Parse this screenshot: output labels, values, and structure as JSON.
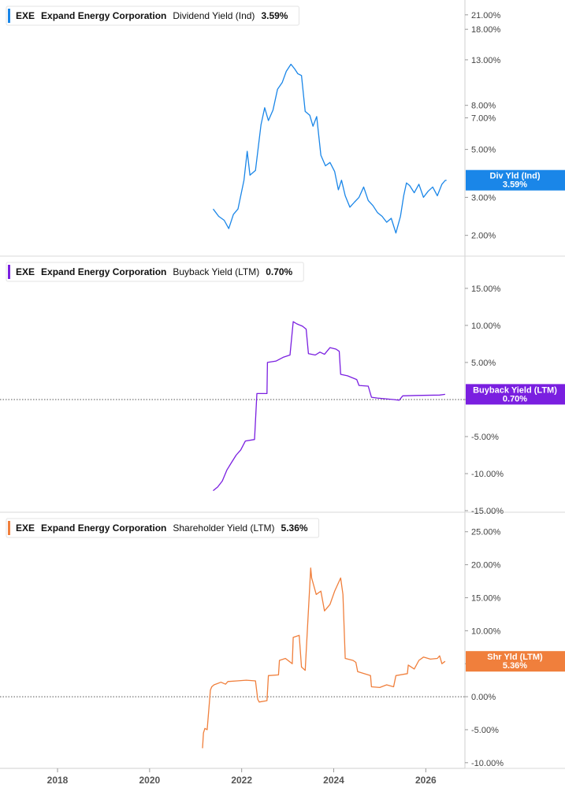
{
  "chart_data": [
    {
      "type": "line",
      "ticker": "EXE",
      "company": "Expand Energy Corporation",
      "metric": "Dividend Yield (Ind)",
      "latest_value": "3.59%",
      "tag_label": "Div Yld (Ind)",
      "tag_value": "3.59%",
      "color": "#1a86e8",
      "scale": "log",
      "ylim": [
        1.7,
        23
      ],
      "y_ticks": [
        2,
        3,
        5,
        7,
        8,
        13,
        18,
        21
      ],
      "y_tick_labels": [
        "2.00%",
        "3.00%",
        "5.00%",
        "7.00%",
        "8.00%",
        "13.00%",
        "18.00%",
        "21.00%"
      ],
      "zero_line": false,
      "x": [
        2021.38,
        2021.5,
        2021.62,
        2021.72,
        2021.82,
        2021.92,
        2022.05,
        2022.12,
        2022.18,
        2022.3,
        2022.42,
        2022.5,
        2022.58,
        2022.68,
        2022.78,
        2022.88,
        2022.97,
        2023.07,
        2023.15,
        2023.22,
        2023.3,
        2023.38,
        2023.48,
        2023.55,
        2023.63,
        2023.72,
        2023.82,
        2023.92,
        2024.02,
        2024.1,
        2024.17,
        2024.25,
        2024.35,
        2024.45,
        2024.55,
        2024.65,
        2024.75,
        2024.85,
        2024.95,
        2025.05,
        2025.15,
        2025.25,
        2025.35,
        2025.45,
        2025.52,
        2025.58,
        2025.65,
        2025.75,
        2025.85,
        2025.95,
        2026.05,
        2026.15,
        2026.25,
        2026.35,
        2026.42,
        2026.45
      ],
      "y": [
        2.65,
        2.45,
        2.35,
        2.15,
        2.5,
        2.65,
        3.6,
        4.9,
        3.8,
        4.0,
        6.5,
        7.8,
        6.8,
        7.6,
        9.5,
        10.2,
        11.5,
        12.4,
        11.8,
        11.2,
        11.0,
        7.5,
        7.2,
        6.4,
        7.1,
        4.7,
        4.2,
        4.35,
        3.95,
        3.25,
        3.6,
        3.05,
        2.7,
        2.85,
        3.0,
        3.35,
        2.9,
        2.75,
        2.55,
        2.45,
        2.3,
        2.4,
        2.05,
        2.45,
        3.05,
        3.5,
        3.4,
        3.15,
        3.45,
        3.0,
        3.2,
        3.35,
        3.05,
        3.45,
        3.59,
        3.6
      ]
    },
    {
      "type": "line",
      "ticker": "EXE",
      "company": "Expand Energy Corporation",
      "metric": "Buyback Yield (LTM)",
      "latest_value": "0.70%",
      "tag_label": "Buyback Yield (LTM)",
      "tag_value": "0.70%",
      "color": "#7a1fe0",
      "scale": "linear",
      "ylim": [
        -15,
        18.5
      ],
      "y_ticks": [
        -15,
        -10,
        -5,
        0,
        5,
        10,
        15
      ],
      "y_tick_labels": [
        "-15.00%",
        "-10.00%",
        "-5.00%",
        "0.00%",
        "5.00%",
        "10.00%",
        "15.00%"
      ],
      "zero_line": true,
      "x": [
        2021.38,
        2021.48,
        2021.58,
        2021.68,
        2021.78,
        2021.88,
        2021.98,
        2022.08,
        2022.28,
        2022.33,
        2022.55,
        2022.56,
        2022.75,
        2022.9,
        2023.05,
        2023.12,
        2023.2,
        2023.32,
        2023.4,
        2023.45,
        2023.6,
        2023.7,
        2023.8,
        2023.92,
        2024.05,
        2024.12,
        2024.15,
        2024.3,
        2024.5,
        2024.55,
        2024.75,
        2024.82,
        2024.95,
        2025.3,
        2025.42,
        2025.5,
        2025.8,
        2026.3,
        2026.42
      ],
      "y": [
        -12.3,
        -11.8,
        -11.0,
        -9.5,
        -8.5,
        -7.5,
        -6.8,
        -5.6,
        -5.4,
        0.8,
        0.8,
        5.0,
        5.2,
        5.7,
        6.0,
        10.5,
        10.2,
        9.9,
        9.5,
        6.2,
        6.0,
        6.4,
        6.1,
        7.0,
        6.8,
        6.5,
        3.4,
        3.2,
        2.7,
        1.9,
        1.8,
        0.3,
        0.2,
        0.0,
        -0.1,
        0.5,
        0.55,
        0.6,
        0.7
      ]
    },
    {
      "type": "line",
      "ticker": "EXE",
      "company": "Expand Energy Corporation",
      "metric": "Shareholder Yield (LTM)",
      "latest_value": "5.36%",
      "tag_label": "Shr Yld (LTM)",
      "tag_value": "5.36%",
      "color": "#f07f3c",
      "scale": "linear",
      "ylim": [
        -10.5,
        27
      ],
      "y_ticks": [
        -10,
        -5,
        0,
        5,
        10,
        15,
        20,
        25
      ],
      "y_tick_labels": [
        "-10.00%",
        "-5.00%",
        "0.00%",
        "5.00%",
        "10.00%",
        "15.00%",
        "20.00%",
        "25.00%"
      ],
      "zero_line": true,
      "x": [
        2021.15,
        2021.17,
        2021.2,
        2021.25,
        2021.32,
        2021.35,
        2021.4,
        2021.55,
        2021.65,
        2021.7,
        2021.9,
        2022.1,
        2022.3,
        2022.35,
        2022.38,
        2022.55,
        2022.58,
        2022.8,
        2022.82,
        2022.95,
        2023.1,
        2023.12,
        2023.25,
        2023.3,
        2023.38,
        2023.5,
        2023.52,
        2023.62,
        2023.72,
        2023.8,
        2023.92,
        2024.02,
        2024.15,
        2024.2,
        2024.25,
        2024.42,
        2024.48,
        2024.52,
        2024.8,
        2024.82,
        2025.0,
        2025.15,
        2025.3,
        2025.35,
        2025.6,
        2025.62,
        2025.75,
        2025.85,
        2025.95,
        2026.1,
        2026.25,
        2026.3,
        2026.35,
        2026.42
      ],
      "y": [
        -7.8,
        -5.5,
        -4.8,
        -5.0,
        1.0,
        1.5,
        1.8,
        2.2,
        1.9,
        2.3,
        2.4,
        2.5,
        2.4,
        -0.4,
        -0.8,
        -0.6,
        3.2,
        3.3,
        5.5,
        5.8,
        5.0,
        9.0,
        9.3,
        4.5,
        4.0,
        19.5,
        18.0,
        15.5,
        16.0,
        13.0,
        14.0,
        16.0,
        18.0,
        15.5,
        5.8,
        5.5,
        5.2,
        3.8,
        3.2,
        1.5,
        1.4,
        1.8,
        1.5,
        3.2,
        3.5,
        4.8,
        4.2,
        5.5,
        6.0,
        5.7,
        5.8,
        6.2,
        5.0,
        5.36
      ]
    }
  ],
  "x_axis": {
    "range": [
      2016.75,
      2026.85
    ],
    "tick_values": [
      2018,
      2020,
      2022,
      2024,
      2026
    ],
    "tick_labels": [
      "2018",
      "2020",
      "2022",
      "2024",
      "2026"
    ]
  }
}
